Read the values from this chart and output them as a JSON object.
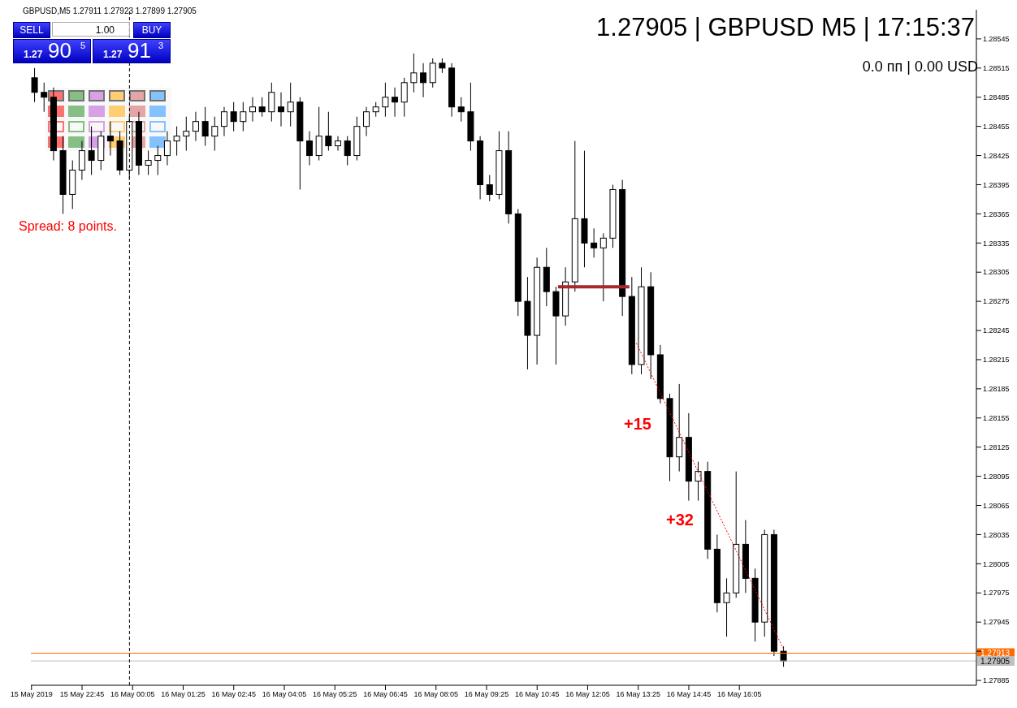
{
  "chart_data": {
    "type": "candlestick",
    "title": "1.27905 | GBPUSD M5 | 17:15:37",
    "annotations": [
      "GBPUSD,M5  1.27911 1.27923 1.27899 1.27905",
      "SELL",
      "1.00",
      "BUY",
      "1.27",
      "90",
      "5",
      "1.27",
      "91",
      "3",
      "Spread: 8 points.",
      "0.0 пп | 0.00 USD",
      "+15",
      "+32"
    ],
    "x": [
      "2019-05-15T21:30",
      "2019-05-15T21:45",
      "2019-05-15T22:00",
      "2019-05-15T22:15",
      "2019-05-15T22:30",
      "2019-05-15T22:45",
      "2019-05-15T23:00",
      "2019-05-15T23:15",
      "2019-05-15T23:30",
      "2019-05-15T23:45",
      "2019-05-16T00:00",
      "2019-05-16T00:15",
      "2019-05-16T00:30",
      "2019-05-16T00:45",
      "2019-05-16T01:00",
      "2019-05-16T01:15",
      "2019-05-16T01:30",
      "2019-05-16T01:45",
      "2019-05-16T02:00",
      "2019-05-16T02:15",
      "2019-05-16T02:30",
      "2019-05-16T02:45",
      "2019-05-16T03:00",
      "2019-05-16T03:15",
      "2019-05-16T03:30",
      "2019-05-16T03:45",
      "2019-05-16T04:00",
      "2019-05-16T04:15",
      "2019-05-16T04:30",
      "2019-05-16T04:45",
      "2019-05-16T05:00",
      "2019-05-16T05:15",
      "2019-05-16T05:30",
      "2019-05-16T05:45",
      "2019-05-16T06:00",
      "2019-05-16T06:15",
      "2019-05-16T06:30",
      "2019-05-16T06:45",
      "2019-05-16T07:00",
      "2019-05-16T07:15",
      "2019-05-16T07:30",
      "2019-05-16T07:45",
      "2019-05-16T08:00",
      "2019-05-16T08:15",
      "2019-05-16T08:30",
      "2019-05-16T08:45",
      "2019-05-16T09:00",
      "2019-05-16T09:15",
      "2019-05-16T09:30",
      "2019-05-16T09:45",
      "2019-05-16T10:00",
      "2019-05-16T10:15",
      "2019-05-16T10:30",
      "2019-05-16T10:45",
      "2019-05-16T11:00",
      "2019-05-16T11:15",
      "2019-05-16T11:30",
      "2019-05-16T11:45",
      "2019-05-16T12:00",
      "2019-05-16T12:15",
      "2019-05-16T12:30",
      "2019-05-16T12:45",
      "2019-05-16T13:00",
      "2019-05-16T13:15",
      "2019-05-16T13:30",
      "2019-05-16T13:45",
      "2019-05-16T14:00",
      "2019-05-16T14:15",
      "2019-05-16T14:30",
      "2019-05-16T14:45",
      "2019-05-16T15:00",
      "2019-05-16T15:15",
      "2019-05-16T15:30",
      "2019-05-16T15:45",
      "2019-05-16T16:00",
      "2019-05-16T16:15",
      "2019-05-16T16:30",
      "2019-05-16T16:45",
      "2019-05-16T17:00",
      "2019-05-16T17:15"
    ],
    "ohlc": [
      [
        1.28505,
        1.28515,
        1.2848,
        1.2849
      ],
      [
        1.2849,
        1.285,
        1.2847,
        1.28485
      ],
      [
        1.28485,
        1.28495,
        1.2842,
        1.2843
      ],
      [
        1.2843,
        1.28445,
        1.28365,
        1.28385
      ],
      [
        1.28385,
        1.2842,
        1.2837,
        1.2841
      ],
      [
        1.2841,
        1.2844,
        1.284,
        1.2843
      ],
      [
        1.2843,
        1.28455,
        1.28405,
        1.2842
      ],
      [
        1.2842,
        1.2845,
        1.2841,
        1.28445
      ],
      [
        1.28445,
        1.2846,
        1.28425,
        1.2844
      ],
      [
        1.2844,
        1.2845,
        1.28405,
        1.2841
      ],
      [
        1.2841,
        1.28465,
        1.284,
        1.2846
      ],
      [
        1.2846,
        1.2847,
        1.28405,
        1.28415
      ],
      [
        1.28415,
        1.2843,
        1.28405,
        1.2842
      ],
      [
        1.2842,
        1.28435,
        1.28405,
        1.28425
      ],
      [
        1.28425,
        1.2845,
        1.28415,
        1.2844
      ],
      [
        1.2844,
        1.28455,
        1.28425,
        1.28445
      ],
      [
        1.28445,
        1.28465,
        1.2843,
        1.2845
      ],
      [
        1.2845,
        1.2847,
        1.2844,
        1.2846
      ],
      [
        1.2846,
        1.28475,
        1.28435,
        1.28445
      ],
      [
        1.28445,
        1.28465,
        1.2843,
        1.28455
      ],
      [
        1.28455,
        1.28475,
        1.28445,
        1.2847
      ],
      [
        1.2847,
        1.2848,
        1.2845,
        1.2846
      ],
      [
        1.2846,
        1.2848,
        1.2845,
        1.2847
      ],
      [
        1.2847,
        1.28485,
        1.2846,
        1.28475
      ],
      [
        1.28475,
        1.28485,
        1.28465,
        1.2847
      ],
      [
        1.2847,
        1.285,
        1.2846,
        1.2849
      ],
      [
        1.28475,
        1.2849,
        1.28455,
        1.2847
      ],
      [
        1.2847,
        1.285,
        1.28455,
        1.2848
      ],
      [
        1.2848,
        1.28485,
        1.2839,
        1.2844
      ],
      [
        1.2844,
        1.2845,
        1.28415,
        1.28425
      ],
      [
        1.28425,
        1.28475,
        1.2842,
        1.28445
      ],
      [
        1.28445,
        1.2847,
        1.2843,
        1.28435
      ],
      [
        1.28435,
        1.28445,
        1.2843,
        1.2844
      ],
      [
        1.2844,
        1.28445,
        1.28415,
        1.28425
      ],
      [
        1.28425,
        1.28465,
        1.2842,
        1.28455
      ],
      [
        1.28455,
        1.28475,
        1.28445,
        1.2847
      ],
      [
        1.2847,
        1.2848,
        1.28465,
        1.28475
      ],
      [
        1.28475,
        1.285,
        1.28465,
        1.28485
      ],
      [
        1.28485,
        1.28495,
        1.28465,
        1.2848
      ],
      [
        1.2848,
        1.28505,
        1.28465,
        1.285
      ],
      [
        1.285,
        1.2853,
        1.2849,
        1.2851
      ],
      [
        1.2851,
        1.2852,
        1.28485,
        1.285
      ],
      [
        1.285,
        1.28525,
        1.28495,
        1.2852
      ],
      [
        1.2852,
        1.28525,
        1.2851,
        1.28515
      ],
      [
        1.28515,
        1.2852,
        1.28465,
        1.28475
      ],
      [
        1.28475,
        1.28485,
        1.2846,
        1.2847
      ],
      [
        1.2847,
        1.285,
        1.2843,
        1.2844
      ],
      [
        1.2844,
        1.28445,
        1.2838,
        1.28395
      ],
      [
        1.28395,
        1.28405,
        1.28378,
        1.28385
      ],
      [
        1.28385,
        1.2845,
        1.2838,
        1.2843
      ],
      [
        1.2843,
        1.2845,
        1.28355,
        1.28365
      ],
      [
        1.28365,
        1.2837,
        1.2826,
        1.28275
      ],
      [
        1.28275,
        1.283,
        1.28205,
        1.2824
      ],
      [
        1.2824,
        1.2832,
        1.2821,
        1.2831
      ],
      [
        1.2831,
        1.2833,
        1.2827,
        1.28285
      ],
      [
        1.28285,
        1.2829,
        1.2821,
        1.2826
      ],
      [
        1.2826,
        1.2831,
        1.2825,
        1.28295
      ],
      [
        1.28295,
        1.2844,
        1.28285,
        1.2836
      ],
      [
        1.2836,
        1.2843,
        1.2831,
        1.28335
      ],
      [
        1.28335,
        1.2835,
        1.2832,
        1.2833
      ],
      [
        1.2833,
        1.28345,
        1.28275,
        1.2834
      ],
      [
        1.2834,
        1.28395,
        1.2833,
        1.2839
      ],
      [
        1.2839,
        1.284,
        1.2826,
        1.2828
      ],
      [
        1.2828,
        1.283,
        1.282,
        1.2821
      ],
      [
        1.2821,
        1.2831,
        1.282,
        1.2829
      ],
      [
        1.2829,
        1.28305,
        1.28195,
        1.2822
      ],
      [
        1.2822,
        1.2823,
        1.2817,
        1.28175
      ],
      [
        1.28175,
        1.2818,
        1.2809,
        1.28115
      ],
      [
        1.28115,
        1.2819,
        1.281,
        1.28135
      ],
      [
        1.28135,
        1.2816,
        1.2807,
        1.2809
      ],
      [
        1.2809,
        1.2811,
        1.2807,
        1.281
      ],
      [
        1.281,
        1.2811,
        1.2801,
        1.2802
      ],
      [
        1.2802,
        1.28035,
        1.27955,
        1.27965
      ],
      [
        1.27965,
        1.2799,
        1.2793,
        1.27975
      ],
      [
        1.27975,
        1.281,
        1.2797,
        1.28025
      ],
      [
        1.28025,
        1.2805,
        1.27975,
        1.2799
      ],
      [
        1.2799,
        1.28,
        1.27925,
        1.27945
      ],
      [
        1.27945,
        1.2804,
        1.2793,
        1.28035
      ],
      [
        1.28035,
        1.2804,
        1.2791,
        1.27915
      ],
      [
        1.27915,
        1.2792,
        1.27899,
        1.27905
      ]
    ],
    "series": [
      {
        "type": "line",
        "color": "#a52a2a",
        "x": [
          "2019-05-16T11:18",
          "2019-05-16T13:11"
        ],
        "values": [
          1.2829,
          1.2829
        ]
      },
      {
        "type": "line",
        "color": "#ff0000",
        "line_style": "dotted",
        "x": [
          "2019-05-16T13:22",
          "2019-05-16T17:15"
        ],
        "values": [
          1.28232,
          1.27917
        ]
      }
    ],
    "ref_lines": [
      {
        "axis": "y",
        "value": 1.27913,
        "label": "1.27913",
        "color": "#ff6a00"
      },
      {
        "axis": "y",
        "value": 1.27905,
        "label": "1.27905",
        "color": "#c0c0c0"
      },
      {
        "axis": "x",
        "value": "2019-05-16T00:00",
        "color": "#000000",
        "line_style": "dashed"
      }
    ],
    "xlim": [
      "2019-05-15T21:24",
      "2019-05-16T22:20"
    ],
    "xticks": [
      {
        "value": "2019-05-15T21:25",
        "label": "15 May 2019"
      },
      {
        "value": "2019-05-15T22:45",
        "label": "15 May 22:45"
      },
      {
        "value": "2019-05-16T00:05",
        "label": "16 May 00:05"
      },
      {
        "value": "2019-05-16T01:25",
        "label": "16 May 01:25"
      },
      {
        "value": "2019-05-16T02:45",
        "label": "16 May 02:45"
      },
      {
        "value": "2019-05-16T04:05",
        "label": "16 May 04:05"
      },
      {
        "value": "2019-05-16T05:25",
        "label": "16 May 05:25"
      },
      {
        "value": "2019-05-16T06:45",
        "label": "16 May 06:45"
      },
      {
        "value": "2019-05-16T08:05",
        "label": "16 May 08:05"
      },
      {
        "value": "2019-05-16T09:25",
        "label": "16 May 09:25"
      },
      {
        "value": "2019-05-16T10:45",
        "label": "16 May 10:45"
      },
      {
        "value": "2019-05-16T12:05",
        "label": "16 May 12:05"
      },
      {
        "value": "2019-05-16T13:25",
        "label": "16 May 13:25"
      },
      {
        "value": "2019-05-16T14:45",
        "label": "16 May 14:45"
      },
      {
        "value": "2019-05-16T16:05",
        "label": "16 May 16:05"
      }
    ],
    "ylim": [
      1.2788,
      1.28575
    ],
    "yticks": [
      1.28545,
      1.28515,
      1.28485,
      1.28455,
      1.28425,
      1.28395,
      1.28365,
      1.28335,
      1.28305,
      1.28275,
      1.28245,
      1.28215,
      1.28185,
      1.28155,
      1.28125,
      1.28095,
      1.28065,
      1.28035,
      1.28005,
      1.27975,
      1.27945,
      {
        "value": 1.27915,
        "label": null
      },
      1.27885
    ]
  }
}
